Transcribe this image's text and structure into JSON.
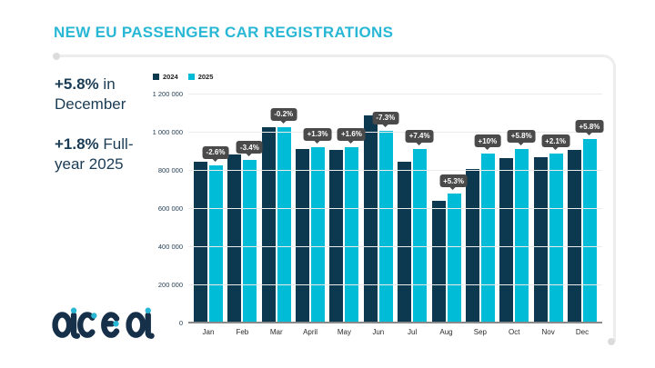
{
  "title": "NEW EU PASSENGER CAR REGISTRATIONS",
  "stats": [
    {
      "pct": "+5.8%",
      "text": "in December"
    },
    {
      "pct": "+1.8%",
      "text": "Full-year 2025"
    }
  ],
  "colors": {
    "accent_cyan": "#29b7d6",
    "bar_2024": "#0d3950",
    "bar_2025": "#00bcd6",
    "tooltip_bg": "#4a4a4a",
    "navy_text": "#1b3c55",
    "outline_gray": "#ededed"
  },
  "logo_name": "acea",
  "chart_data": {
    "type": "bar",
    "title": "NEW EU PASSENGER CAR REGISTRATIONS",
    "categories": [
      "Jan",
      "Feb",
      "Mar",
      "April",
      "May",
      "Jun",
      "Jul",
      "Aug",
      "Sep",
      "Oct",
      "Nov",
      "Dec"
    ],
    "series": [
      {
        "name": "2024",
        "color": "#0d3950",
        "values": [
          850000,
          885000,
          1030000,
          915000,
          910000,
          1090000,
          850000,
          645000,
          810000,
          865000,
          870000,
          910000
        ]
      },
      {
        "name": "2025",
        "color": "#00bcd6",
        "values": [
          830000,
          855000,
          1030000,
          925000,
          925000,
          1010000,
          915000,
          680000,
          890000,
          915000,
          890000,
          965000
        ]
      }
    ],
    "bar_labels": [
      "-2.6%",
      "-3.4%",
      "-0.2%",
      "+1.3%",
      "+1.6%",
      "-7.3%",
      "+7.4%",
      "+5.3%",
      "+10%",
      "+5.8%",
      "+2.1%",
      "+5.8%"
    ],
    "xlabel": "",
    "ylabel": "",
    "ylim": [
      0,
      1200000
    ],
    "ytick_step": 200000,
    "ytick_labels": [
      "0",
      "200 000",
      "400 000",
      "600 000",
      "800 000",
      "1 000 000",
      "1 200 000"
    ],
    "grid": true,
    "legend_position": "top-left"
  }
}
